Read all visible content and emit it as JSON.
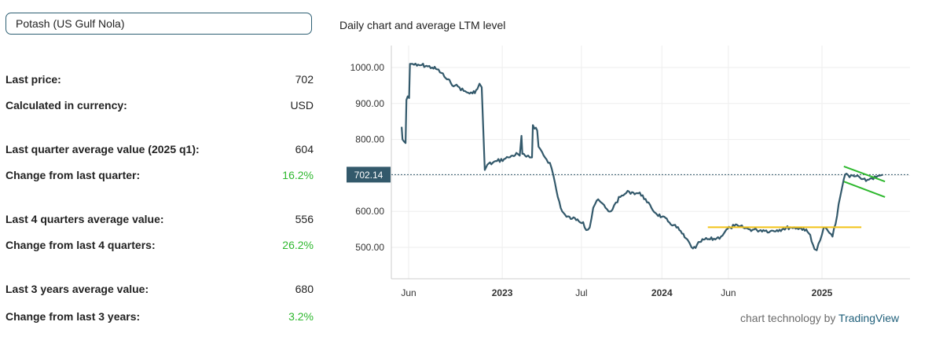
{
  "selector": {
    "value": "Potash (US Gulf Nola)"
  },
  "stats": [
    {
      "label": "Last price:",
      "value": "702",
      "tone": "neutral"
    },
    {
      "label": "Calculated in currency:",
      "value": "USD",
      "tone": "neutral"
    },
    {
      "label": "Last quarter average value (2025 q1):",
      "value": "604",
      "tone": "neutral"
    },
    {
      "label": "Change from last quarter:",
      "value": "16.2%",
      "tone": "positive"
    },
    {
      "label": "Last 4 quarters average value:",
      "value": "556",
      "tone": "neutral"
    },
    {
      "label": "Change from last 4 quarters:",
      "value": "26.2%",
      "tone": "positive"
    },
    {
      "label": "Last 3 years average value:",
      "value": "680",
      "tone": "neutral"
    },
    {
      "label": "Change from last 3 years:",
      "value": "3.2%",
      "tone": "positive"
    }
  ],
  "chart_title": "Daily chart and average LTM level",
  "credit": {
    "prefix": "chart technology by",
    "brand": "TradingView"
  },
  "colors": {
    "line": "#33596b",
    "grid": "#eeeeee",
    "axis": "#cccccc",
    "price_label_bg": "#33596b",
    "avg_line": "#f2c318",
    "channel": "#2eb82e",
    "positive": "#2eb82e"
  },
  "chart_data": {
    "type": "line",
    "title": "Daily chart and average LTM level",
    "xlabel": "",
    "ylabel": "",
    "x_tick_labels": [
      {
        "label": "Jun",
        "date": "2022-06-01"
      },
      {
        "label": "2023",
        "date": "2023-01-01"
      },
      {
        "label": "Jul",
        "date": "2023-07-01"
      },
      {
        "label": "2024",
        "date": "2024-01-01"
      },
      {
        "label": "Jun",
        "date": "2024-06-01"
      },
      {
        "label": "2025",
        "date": "2025-01-01"
      }
    ],
    "xlim": [
      "2022-05-13",
      "2025-07-10"
    ],
    "y_ticks": [
      500,
      600,
      700,
      800,
      900,
      1000
    ],
    "y_tick_labels": [
      "500.00",
      "600.00",
      "700.00",
      "800.00",
      "900.00",
      "1000.00"
    ],
    "ylim": [
      470,
      1030
    ],
    "last_value": 702.14,
    "last_value_label": "702.14",
    "grid": true,
    "series": [
      {
        "values": [
          [
            "2022-05-16",
            835
          ],
          [
            "2022-05-18",
            800
          ],
          [
            "2022-05-21",
            795
          ],
          [
            "2022-05-25",
            790
          ],
          [
            "2022-05-27",
            910
          ],
          [
            "2022-05-30",
            920
          ],
          [
            "2022-06-02",
            915
          ],
          [
            "2022-06-04",
            1010
          ],
          [
            "2022-06-10",
            1010
          ],
          [
            "2022-06-20",
            1005
          ],
          [
            "2022-07-01",
            1007
          ],
          [
            "2022-07-15",
            1003
          ],
          [
            "2022-07-25",
            1000
          ],
          [
            "2022-08-05",
            995
          ],
          [
            "2022-08-15",
            985
          ],
          [
            "2022-08-25",
            970
          ],
          [
            "2022-09-05",
            958
          ],
          [
            "2022-09-15",
            950
          ],
          [
            "2022-09-25",
            945
          ],
          [
            "2022-10-05",
            935
          ],
          [
            "2022-10-15",
            930
          ],
          [
            "2022-10-25",
            928
          ],
          [
            "2022-11-05",
            940
          ],
          [
            "2022-11-10",
            955
          ],
          [
            "2022-11-15",
            945
          ],
          [
            "2022-11-22",
            715
          ],
          [
            "2022-11-28",
            730
          ],
          [
            "2022-12-10",
            735
          ],
          [
            "2022-12-20",
            740
          ],
          [
            "2023-01-05",
            745
          ],
          [
            "2023-01-15",
            750
          ],
          [
            "2023-01-25",
            755
          ],
          [
            "2023-02-05",
            760
          ],
          [
            "2023-02-10",
            755
          ],
          [
            "2023-02-14",
            810
          ],
          [
            "2023-02-16",
            760
          ],
          [
            "2023-02-25",
            752
          ],
          [
            "2023-03-05",
            750
          ],
          [
            "2023-03-10",
            750
          ],
          [
            "2023-03-12",
            840
          ],
          [
            "2023-03-16",
            830
          ],
          [
            "2023-03-22",
            825
          ],
          [
            "2023-03-25",
            780
          ],
          [
            "2023-04-02",
            765
          ],
          [
            "2023-04-12",
            745
          ],
          [
            "2023-04-20",
            735
          ],
          [
            "2023-04-28",
            700
          ],
          [
            "2023-05-08",
            640
          ],
          [
            "2023-05-18",
            600
          ],
          [
            "2023-05-28",
            585
          ],
          [
            "2023-06-10",
            580
          ],
          [
            "2023-06-22",
            578
          ],
          [
            "2023-07-05",
            570
          ],
          [
            "2023-07-12",
            548
          ],
          [
            "2023-07-20",
            555
          ],
          [
            "2023-07-28",
            610
          ],
          [
            "2023-08-05",
            630
          ],
          [
            "2023-08-15",
            625
          ],
          [
            "2023-08-25",
            610
          ],
          [
            "2023-09-01",
            600
          ],
          [
            "2023-09-10",
            605
          ],
          [
            "2023-09-18",
            625
          ],
          [
            "2023-09-28",
            640
          ],
          [
            "2023-10-08",
            648
          ],
          [
            "2023-10-18",
            655
          ],
          [
            "2023-10-28",
            652
          ],
          [
            "2023-11-08",
            650
          ],
          [
            "2023-11-18",
            645
          ],
          [
            "2023-11-28",
            625
          ],
          [
            "2023-12-08",
            610
          ],
          [
            "2023-12-18",
            595
          ],
          [
            "2024-01-01",
            585
          ],
          [
            "2024-01-15",
            572
          ],
          [
            "2024-01-28",
            562
          ],
          [
            "2024-02-10",
            548
          ],
          [
            "2024-02-22",
            528
          ],
          [
            "2024-03-05",
            510
          ],
          [
            "2024-03-12",
            497
          ],
          [
            "2024-03-18",
            498
          ],
          [
            "2024-03-28",
            515
          ],
          [
            "2024-04-08",
            522
          ],
          [
            "2024-04-20",
            522
          ],
          [
            "2024-05-05",
            525
          ],
          [
            "2024-05-15",
            530
          ],
          [
            "2024-05-25",
            545
          ],
          [
            "2024-06-05",
            555
          ],
          [
            "2024-06-15",
            560
          ],
          [
            "2024-06-25",
            558
          ],
          [
            "2024-07-05",
            555
          ],
          [
            "2024-07-20",
            550
          ],
          [
            "2024-08-05",
            548
          ],
          [
            "2024-08-20",
            548
          ],
          [
            "2024-09-05",
            545
          ],
          [
            "2024-09-20",
            548
          ],
          [
            "2024-10-05",
            552
          ],
          [
            "2024-10-20",
            556
          ],
          [
            "2024-11-05",
            554
          ],
          [
            "2024-11-20",
            552
          ],
          [
            "2024-12-05",
            535
          ],
          [
            "2024-12-15",
            495
          ],
          [
            "2024-12-20",
            492
          ],
          [
            "2024-12-28",
            520
          ],
          [
            "2025-01-05",
            555
          ],
          [
            "2025-01-15",
            545
          ],
          [
            "2025-01-25",
            530
          ],
          [
            "2025-02-01",
            565
          ],
          [
            "2025-02-08",
            620
          ],
          [
            "2025-02-15",
            660
          ],
          [
            "2025-02-20",
            690
          ],
          [
            "2025-02-26",
            705
          ],
          [
            "2025-03-05",
            695
          ],
          [
            "2025-03-12",
            700
          ],
          [
            "2025-03-20",
            698
          ],
          [
            "2025-03-28",
            695
          ],
          [
            "2025-04-05",
            690
          ],
          [
            "2025-04-15",
            688
          ],
          [
            "2025-04-25",
            692
          ],
          [
            "2025-05-05",
            695
          ],
          [
            "2025-05-15",
            700
          ],
          [
            "2025-05-20",
            702
          ]
        ]
      }
    ],
    "ltm_average": {
      "value": 556,
      "from": "2024-04-15",
      "to": "2025-04-01"
    },
    "channel": {
      "upper": [
        [
          "2025-02-20",
          725
        ],
        [
          "2025-05-25",
          683
        ]
      ],
      "lower": [
        [
          "2025-02-20",
          683
        ],
        [
          "2025-05-25",
          640
        ]
      ]
    }
  }
}
